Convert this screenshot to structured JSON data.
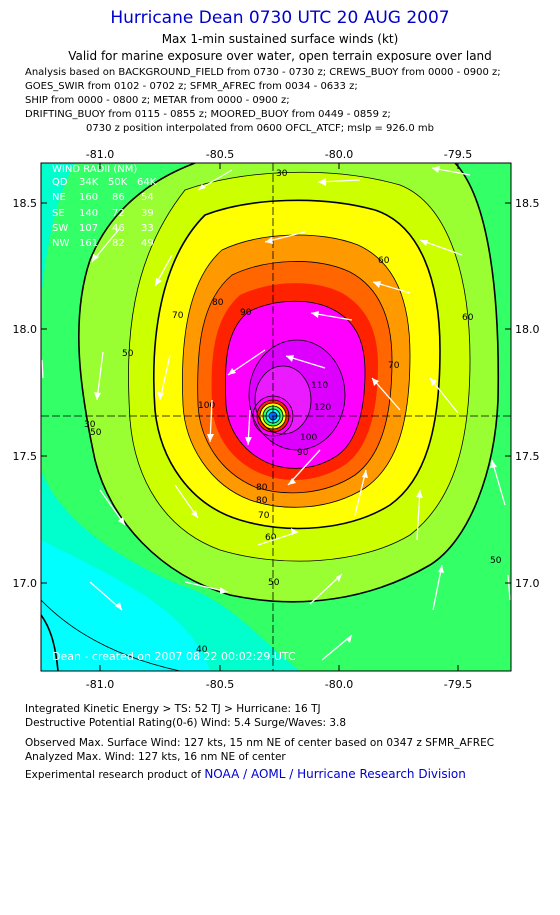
{
  "header": {
    "title": "Hurricane Dean 0730 UTC 20 AUG 2007",
    "subtitle": "Max 1-min sustained surface winds (kt)",
    "validity": "Valid for marine exposure over water, open terrain exposure over land"
  },
  "analysis_lines": [
    "Analysis based on  BACKGROUND_FIELD from 0730 - 0730 z;  CREWS_BUOY from 0000 - 0900 z;",
    "GOES_SWIR from 0102 - 0702 z;  SFMR_AFREC from 0034 - 0633 z;",
    "SHIP from 0000 - 0800 z;  METAR from 0000 - 0900 z;",
    "DRIFTING_BUOY from 0115 - 0855 z;  MOORED_BUOY from 0449 - 0859 z;",
    "0730 z position interpolated from 0600 OFCL_ATCF; mslp = 926.0 mb"
  ],
  "map": {
    "lon_ticks": [
      "-81.0",
      "-80.5",
      "-80.0",
      "-79.5"
    ],
    "lat_ticks": [
      "18.5",
      "18.0",
      "17.5",
      "17.0"
    ],
    "lon_range": [
      -81.25,
      -79.4
    ],
    "lat_range": [
      16.65,
      18.65
    ],
    "center": {
      "lon": -80.23,
      "lat": 17.65
    },
    "contour_labels": [
      "30",
      "50",
      "60",
      "70",
      "80",
      "90",
      "100",
      "110",
      "120",
      "30",
      "60",
      "70",
      "80",
      "50",
      "50",
      "60",
      "70",
      "80",
      "50",
      "40",
      "90",
      "100"
    ],
    "wind_radii": {
      "title": "WIND RADII (NM)",
      "header": [
        "QD",
        "34K",
        "50K",
        "64K"
      ],
      "rows": [
        [
          "NE",
          "160",
          "86",
          "54"
        ],
        [
          "SE",
          "140",
          "72",
          "39"
        ],
        [
          "SW",
          "107",
          "46",
          "33"
        ],
        [
          "NW",
          "161",
          "82",
          "49"
        ]
      ]
    },
    "watermark": "Dean  - created on 2007 08 22 00:02:29 UTC",
    "colors": {
      "cyan": "#00ffff",
      "aqua": "#00ffcc",
      "green": "#33ff66",
      "lime": "#99ff33",
      "chartreuse": "#ccff00",
      "yellow": "#ffff00",
      "orange": "#ff9900",
      "darkorange": "#ff6600",
      "red": "#ff2200",
      "magenta": "#ff00ff",
      "violet": "#cc00ff"
    }
  },
  "footer": {
    "ike": "Integrated Kinetic Energy > TS: 52 TJ   > Hurricane: 16 TJ",
    "dpr": "Destructive Potential Rating(0-6)   Wind: 5.4 Surge/Waves: 3.8",
    "observed": "Observed Max. Surface Wind: 127 kts, 15 nm NE of center based on 0347 z SFMR_AFREC",
    "analyzed": "Analyzed Max. Wind: 127 kts, 16 nm NE of center",
    "credit_prefix": "Experimental research product of ",
    "credit_org": "NOAA / AOML / Hurricane Research Division"
  }
}
